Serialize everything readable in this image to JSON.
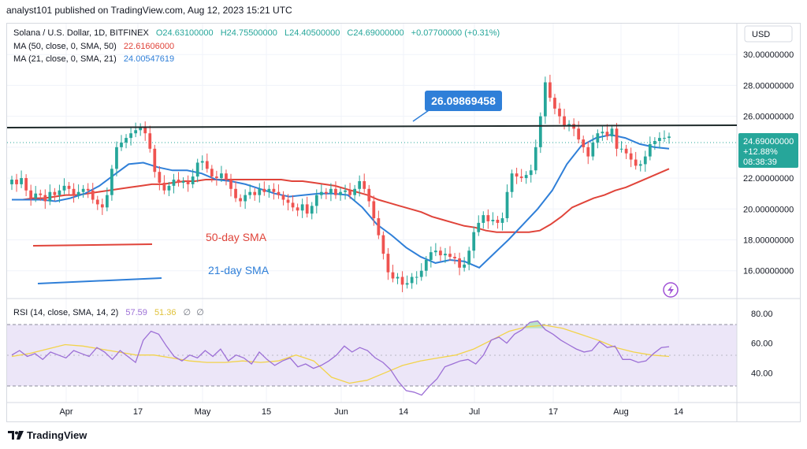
{
  "header": {
    "published_by": "analyst101 published on TradingView.com, Aug 12, 2023 15:21 UTC"
  },
  "legend": {
    "symbol_line": {
      "name": "Solana / U.S. Dollar, 1D, BITFINEX",
      "o": "O24.63100000",
      "h": "H24.75500000",
      "l": "L24.40500000",
      "c": "C24.69000000",
      "chg": "+0.07700000 (+0.31%)"
    },
    "ma50": {
      "label": "MA (50, close, 0, SMA, 50)",
      "value": "22.61606000"
    },
    "ma21": {
      "label": "MA (21, close, 0, SMA, 21)",
      "value": "24.00547619"
    },
    "rsi": {
      "label": "RSI (14, close, SMA, 14, 2)",
      "value": "57.59",
      "ma_value": "51.36"
    }
  },
  "currency_button": "USD",
  "price_axis": {
    "ticks": [
      "30.00000000",
      "28.00000000",
      "26.00000000",
      "22.00000000",
      "20.00000000",
      "18.00000000",
      "16.00000000"
    ],
    "tick_values": [
      30,
      28,
      26,
      22,
      20,
      18,
      16
    ],
    "current_price_tag": {
      "price": "24.69000000",
      "change": "+12.88%",
      "countdown": "08:38:39"
    }
  },
  "rsi_axis": {
    "ticks": [
      "80.00",
      "60.00",
      "40.00"
    ],
    "tick_values": [
      80,
      60,
      40
    ]
  },
  "time_axis": {
    "labels": [
      "Apr",
      "17",
      "May",
      "15",
      "Jun",
      "14",
      "Jul",
      "17",
      "Aug",
      "14"
    ]
  },
  "annotations": {
    "resistance_value": "26.09869458",
    "label_50": "50-day SMA",
    "label_21": "21-day SMA"
  },
  "colors": {
    "up": "#26a69a",
    "down": "#ef5350",
    "ma50": "#e0443a",
    "ma21": "#2f7fd8",
    "rsi": "#9c6fd6",
    "rsi_ma": "#f2d34a",
    "resistance": "#1e2a2a",
    "price_tag": "#26a69a",
    "label_box": "#2f7fd8"
  },
  "footer": {
    "brand": "TradingView"
  },
  "chart_data": {
    "type": "candlestick",
    "title": "Solana / U.S. Dollar, 1D, BITFINEX",
    "x_range": [
      "2023-03-24",
      "2023-08-22"
    ],
    "ylim": [
      14.2,
      32.0
    ],
    "closes": [
      21.9,
      21.6,
      22.0,
      21.2,
      20.7,
      21.0,
      20.9,
      20.5,
      21.1,
      20.9,
      21.2,
      21.5,
      21.3,
      20.9,
      21.1,
      21.3,
      21.2,
      20.6,
      20.3,
      20.1,
      20.9,
      22.6,
      24.0,
      24.3,
      24.6,
      24.9,
      25.1,
      25.3,
      24.9,
      23.9,
      22.4,
      21.7,
      21.2,
      21.5,
      21.9,
      21.7,
      21.8,
      21.6,
      22.1,
      23.0,
      23.1,
      22.6,
      22.1,
      22.0,
      22.3,
      21.9,
      21.3,
      20.7,
      20.5,
      20.9,
      21.1,
      20.9,
      21.3,
      21.1,
      21.3,
      21.1,
      20.9,
      20.6,
      20.4,
      20.1,
      19.9,
      20.3,
      19.7,
      20.2,
      20.9,
      21.1,
      21.0,
      21.3,
      20.9,
      21.1,
      21.2,
      20.9,
      21.3,
      21.8,
      21.3,
      20.5,
      19.4,
      18.3,
      17.1,
      15.9,
      15.5,
      15.6,
      15.1,
      15.2,
      15.6,
      15.6,
      16.0,
      16.7,
      17.2,
      17.3,
      17.0,
      17.1,
      16.9,
      16.8,
      16.2,
      16.4,
      17.3,
      18.5,
      19.1,
      19.6,
      19.2,
      19.3,
      19.1,
      19.4,
      21.1,
      22.3,
      22.1,
      22.0,
      22.2,
      22.5,
      24.0,
      26.0,
      28.2,
      27.2,
      26.5,
      26.0,
      25.4,
      25.5,
      25.2,
      24.5,
      24.0,
      23.4,
      24.3,
      24.9,
      25.0,
      24.7,
      25.2,
      23.9,
      23.9,
      23.6,
      23.2,
      22.8,
      22.9,
      23.4,
      24.2,
      24.4,
      24.6,
      24.6,
      24.69
    ],
    "series": [
      {
        "name": "MA (50, close, 0, SMA, 50)",
        "values": [
          20.6,
          20.6,
          20.7,
          20.7,
          20.8,
          20.9,
          20.9,
          21.0,
          21.1,
          21.2,
          21.3,
          21.4,
          21.5,
          21.6,
          21.6,
          21.7,
          21.8,
          21.8,
          21.9,
          21.9,
          21.9,
          21.9,
          21.9,
          21.9,
          21.9,
          21.9,
          21.8,
          21.8,
          21.7,
          21.6,
          21.5,
          21.3,
          21.1,
          20.9,
          20.6,
          20.4,
          20.2,
          20.0,
          19.8,
          19.5,
          19.3,
          19.1,
          18.9,
          18.8,
          18.6,
          18.5,
          18.5,
          18.5,
          18.5,
          18.6,
          19.0,
          19.5,
          20.1,
          20.4,
          20.7,
          20.9,
          21.2,
          21.4,
          21.7,
          22.0,
          22.3,
          22.6
        ]
      },
      {
        "name": "MA (21, close, 0, SMA, 21)",
        "values": [
          20.6,
          20.6,
          20.6,
          20.5,
          20.7,
          21.0,
          21.5,
          22.2,
          22.9,
          23.0,
          22.7,
          22.5,
          22.5,
          22.3,
          21.9,
          21.8,
          21.6,
          21.3,
          21.0,
          20.8,
          20.9,
          21.0,
          21.0,
          20.9,
          20.1,
          19.0,
          18.3,
          17.5,
          16.9,
          16.5,
          16.7,
          16.6,
          16.2,
          17.1,
          18.0,
          19.0,
          20.0,
          21.2,
          22.9,
          24.1,
          24.6,
          24.8,
          24.6,
          24.2,
          24.0,
          23.9
        ]
      }
    ],
    "rsi": {
      "name": "RSI (14, close, SMA, 14, 2)",
      "ylim": [
        20,
        90
      ],
      "overbought": 70,
      "oversold": 30,
      "values": [
        52,
        55,
        51,
        53,
        49,
        54,
        52,
        50,
        55,
        53,
        51,
        57,
        54,
        49,
        55,
        51,
        47,
        62,
        68,
        66,
        58,
        51,
        48,
        52,
        50,
        55,
        51,
        56,
        48,
        52,
        50,
        46,
        54,
        49,
        45,
        48,
        50,
        44,
        46,
        43,
        45,
        48,
        52,
        58,
        54,
        57,
        55,
        50,
        47,
        42,
        34,
        28,
        27,
        25,
        31,
        36,
        44,
        46,
        48,
        49,
        46,
        52,
        62,
        64,
        60,
        66,
        69,
        74,
        75,
        69,
        66,
        62,
        59,
        56,
        54,
        55,
        61,
        57,
        58,
        49,
        49,
        47,
        48,
        53,
        57,
        57.59
      ],
      "ma_values": [
        51,
        53,
        56,
        59,
        58,
        56,
        54,
        52,
        52,
        50,
        48,
        47,
        47,
        48,
        47,
        48,
        52,
        48,
        37,
        33,
        35,
        40,
        45,
        48,
        50,
        52,
        56,
        62,
        68,
        71,
        72,
        70,
        66,
        62,
        57,
        54,
        52,
        51
      ]
    },
    "resistance_level": 26.09869458
  }
}
